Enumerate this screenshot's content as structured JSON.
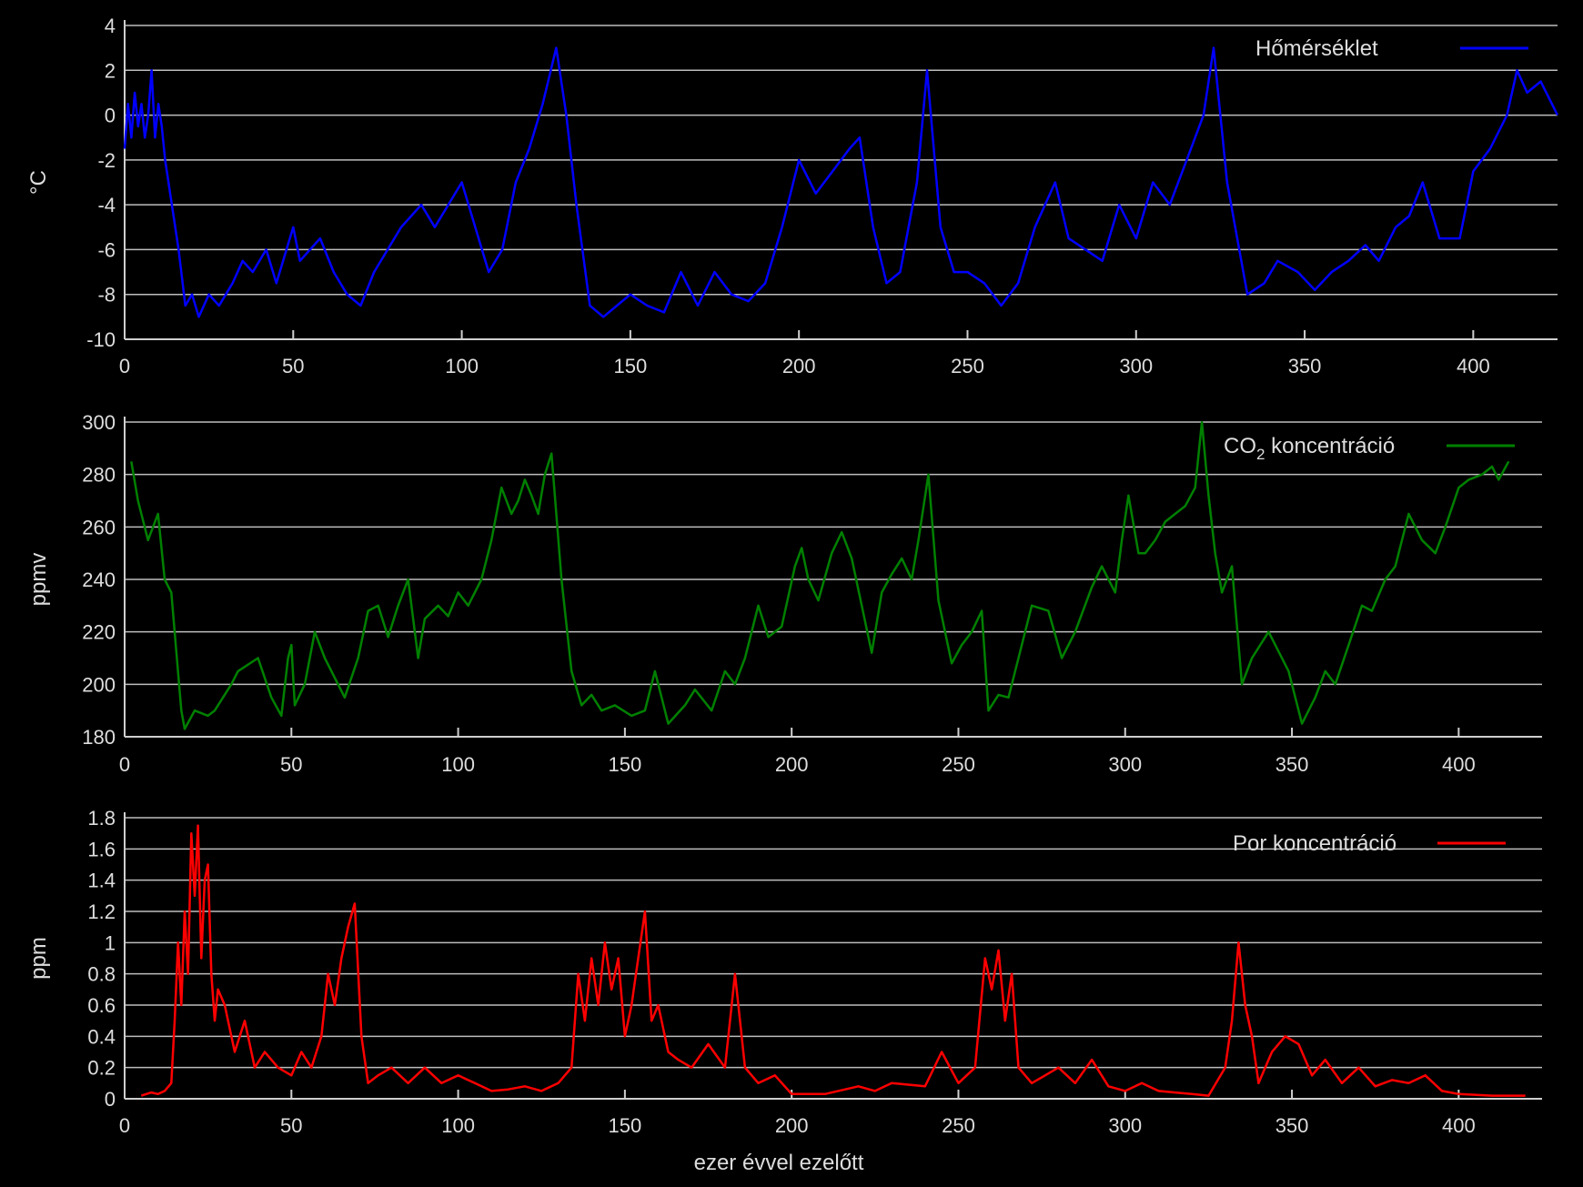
{
  "chart_data": [
    {
      "type": "line",
      "ylabel": "°C",
      "xlabel": "",
      "xlim": [
        0,
        425
      ],
      "ylim": [
        -10,
        4
      ],
      "x_ticks": [
        "0",
        "50",
        "100",
        "150",
        "200",
        "250",
        "300",
        "350",
        "400"
      ],
      "y_ticks": [
        "-10",
        "-8",
        "-6",
        "-4",
        "-2",
        "0",
        "2",
        "4"
      ],
      "grid": true,
      "legend_position": "top-right",
      "series": [
        {
          "name": "Hőmérséklet",
          "color": "#0000ff",
          "x": [
            0,
            1,
            2,
            3,
            4,
            5,
            6,
            7,
            8,
            9,
            10,
            11,
            12,
            14,
            16,
            18,
            20,
            22,
            25,
            28,
            32,
            35,
            38,
            42,
            45,
            48,
            50,
            52,
            55,
            58,
            62,
            66,
            70,
            74,
            78,
            82,
            85,
            88,
            92,
            96,
            100,
            103,
            108,
            112,
            116,
            120,
            124,
            128,
            131,
            134,
            138,
            142,
            146,
            150,
            155,
            160,
            165,
            170,
            175,
            180,
            185,
            190,
            195,
            200,
            205,
            210,
            215,
            218,
            222,
            226,
            230,
            235,
            238,
            242,
            246,
            250,
            255,
            260,
            265,
            270,
            276,
            280,
            285,
            290,
            295,
            300,
            305,
            310,
            315,
            320,
            323,
            327,
            333,
            338,
            342,
            348,
            353,
            358,
            363,
            368,
            372,
            377,
            381,
            385,
            390,
            396,
            400,
            405,
            410,
            413,
            416,
            420,
            425
          ],
          "y": [
            -1.5,
            0.5,
            -1,
            1,
            -0.5,
            0.5,
            -1,
            0,
            2,
            -1,
            0.5,
            -0.5,
            -2,
            -4,
            -6,
            -8.5,
            -8,
            -9,
            -8,
            -8.5,
            -7.5,
            -6.5,
            -7,
            -6,
            -7.5,
            -6,
            -5,
            -6.5,
            -6,
            -5.5,
            -7,
            -8,
            -8.5,
            -7,
            -6,
            -5,
            -4.5,
            -4,
            -5,
            -4,
            -3,
            -4.5,
            -7,
            -6,
            -3,
            -1.5,
            0.5,
            3,
            0,
            -4,
            -8.5,
            -9,
            -8.5,
            -8,
            -8.5,
            -8.8,
            -7,
            -8.5,
            -7,
            -8,
            -8.3,
            -7.5,
            -5,
            -2,
            -3.5,
            -2.5,
            -1.5,
            -1,
            -5,
            -7.5,
            -7,
            -3,
            2,
            -5,
            -7,
            -7,
            -7.5,
            -8.5,
            -7.5,
            -5,
            -3,
            -5.5,
            -6,
            -6.5,
            -4,
            -5.5,
            -3,
            -4,
            -2,
            0,
            3,
            -3,
            -8,
            -7.5,
            -6.5,
            -7,
            -7.8,
            -7,
            -6.5,
            -5.8,
            -6.5,
            -5,
            -4.5,
            -3,
            -5.5,
            -5.5,
            -2.5,
            -1.5,
            0,
            2,
            1,
            1.5,
            0
          ]
        }
      ]
    },
    {
      "type": "line",
      "ylabel": "ppmv",
      "xlabel": "",
      "xlim": [
        0,
        425
      ],
      "ylim": [
        180,
        300
      ],
      "x_ticks": [
        "0",
        "50",
        "100",
        "150",
        "200",
        "250",
        "300",
        "350",
        "400"
      ],
      "y_ticks": [
        "180",
        "200",
        "220",
        "240",
        "260",
        "280",
        "300"
      ],
      "grid": true,
      "legend_position": "top-right",
      "series": [
        {
          "name": "CO2 koncentráció",
          "color": "#008000",
          "x": [
            2,
            4,
            7,
            10,
            12,
            14,
            17,
            18,
            21,
            25,
            27,
            32,
            34,
            40,
            44,
            47,
            49,
            50,
            51,
            54,
            57,
            60,
            66,
            70,
            73,
            76,
            79,
            82,
            85,
            88,
            90,
            94,
            97,
            100,
            103,
            107,
            110,
            113,
            116,
            118,
            120,
            122,
            124,
            126,
            128,
            131,
            134,
            137,
            140,
            143,
            147,
            152,
            156,
            159,
            163,
            168,
            171,
            176,
            180,
            183,
            186,
            190,
            193,
            197,
            201,
            203,
            205,
            208,
            212,
            215,
            218,
            221,
            224,
            227,
            230,
            233,
            236,
            238,
            241,
            244,
            248,
            251,
            254,
            257,
            259,
            262,
            265,
            268,
            272,
            277,
            281,
            285,
            290,
            293,
            297,
            299,
            301,
            304,
            306,
            309,
            312,
            315,
            318,
            321,
            323,
            325,
            327,
            329,
            332,
            335,
            338,
            343,
            349,
            353,
            357,
            360,
            363,
            367,
            371,
            374,
            378,
            381,
            385,
            389,
            393,
            396,
            400,
            403,
            407,
            410,
            412,
            415
          ],
          "y": [
            285,
            270,
            255,
            265,
            240,
            235,
            190,
            183,
            190,
            188,
            190,
            200,
            205,
            210,
            195,
            188,
            210,
            215,
            192,
            200,
            220,
            210,
            195,
            210,
            228,
            230,
            218,
            230,
            240,
            210,
            225,
            230,
            226,
            235,
            230,
            240,
            255,
            275,
            265,
            270,
            278,
            272,
            265,
            280,
            288,
            240,
            205,
            192,
            196,
            190,
            192,
            188,
            190,
            205,
            185,
            192,
            198,
            190,
            205,
            200,
            210,
            230,
            218,
            222,
            245,
            252,
            240,
            232,
            250,
            258,
            248,
            230,
            212,
            235,
            242,
            248,
            240,
            255,
            280,
            232,
            208,
            215,
            220,
            228,
            190,
            196,
            195,
            210,
            230,
            228,
            210,
            220,
            237,
            245,
            235,
            255,
            272,
            250,
            250,
            255,
            262,
            265,
            268,
            275,
            300,
            272,
            250,
            235,
            245,
            200,
            210,
            220,
            205,
            185,
            195,
            205,
            200,
            215,
            230,
            228,
            240,
            245,
            265,
            255,
            250,
            260,
            275,
            278,
            280,
            283,
            278,
            285
          ]
        }
      ]
    },
    {
      "type": "line",
      "ylabel": "ppm",
      "xlabel": "ezer évvel ezelőtt",
      "xlim": [
        0,
        425
      ],
      "ylim": [
        0,
        1.8
      ],
      "x_ticks": [
        "0",
        "50",
        "100",
        "150",
        "200",
        "250",
        "300",
        "350",
        "400"
      ],
      "y_ticks": [
        "0",
        "0.2",
        "0.4",
        "0.6",
        "0.8",
        "1",
        "1.2",
        "1.4",
        "1.6",
        "1.8"
      ],
      "grid": true,
      "legend_position": "top-right",
      "series": [
        {
          "name": "Por koncentráció",
          "color": "#ff0000",
          "x": [
            5,
            8,
            10,
            12,
            14,
            15,
            16,
            17,
            18,
            19,
            20,
            21,
            22,
            23,
            24,
            25,
            26,
            27,
            28,
            30,
            33,
            36,
            39,
            42,
            46,
            50,
            53,
            56,
            59,
            61,
            63,
            65,
            67,
            69,
            71,
            73,
            76,
            80,
            85,
            90,
            95,
            100,
            105,
            110,
            115,
            120,
            125,
            130,
            134,
            136,
            138,
            140,
            142,
            144,
            146,
            148,
            150,
            152,
            154,
            156,
            158,
            160,
            163,
            166,
            170,
            175,
            180,
            183,
            186,
            190,
            195,
            200,
            210,
            220,
            225,
            230,
            240,
            245,
            250,
            255,
            258,
            260,
            262,
            264,
            266,
            268,
            272,
            276,
            280,
            285,
            290,
            295,
            300,
            305,
            310,
            315,
            320,
            325,
            330,
            332,
            334,
            336,
            338,
            340,
            344,
            348,
            352,
            356,
            360,
            365,
            370,
            375,
            380,
            385,
            390,
            395,
            400,
            410,
            420
          ],
          "y": [
            0.02,
            0.04,
            0.03,
            0.05,
            0.1,
            0.5,
            1.0,
            0.6,
            1.2,
            0.8,
            1.7,
            1.3,
            1.75,
            0.9,
            1.4,
            1.5,
            0.8,
            0.5,
            0.7,
            0.6,
            0.3,
            0.5,
            0.2,
            0.3,
            0.2,
            0.15,
            0.3,
            0.2,
            0.4,
            0.8,
            0.6,
            0.9,
            1.1,
            1.25,
            0.4,
            0.1,
            0.15,
            0.2,
            0.1,
            0.2,
            0.1,
            0.15,
            0.1,
            0.05,
            0.06,
            0.08,
            0.05,
            0.1,
            0.2,
            0.8,
            0.5,
            0.9,
            0.6,
            1.0,
            0.7,
            0.9,
            0.4,
            0.6,
            0.9,
            1.2,
            0.5,
            0.6,
            0.3,
            0.25,
            0.2,
            0.35,
            0.2,
            0.8,
            0.2,
            0.1,
            0.15,
            0.03,
            0.03,
            0.08,
            0.05,
            0.1,
            0.08,
            0.3,
            0.1,
            0.2,
            0.9,
            0.7,
            0.95,
            0.5,
            0.8,
            0.2,
            0.1,
            0.15,
            0.2,
            0.1,
            0.25,
            0.08,
            0.05,
            0.1,
            0.05,
            0.04,
            0.03,
            0.02,
            0.2,
            0.5,
            1.0,
            0.6,
            0.4,
            0.1,
            0.3,
            0.4,
            0.35,
            0.15,
            0.25,
            0.1,
            0.2,
            0.08,
            0.12,
            0.1,
            0.15,
            0.05,
            0.03,
            0.02,
            0.02
          ]
        }
      ]
    }
  ]
}
